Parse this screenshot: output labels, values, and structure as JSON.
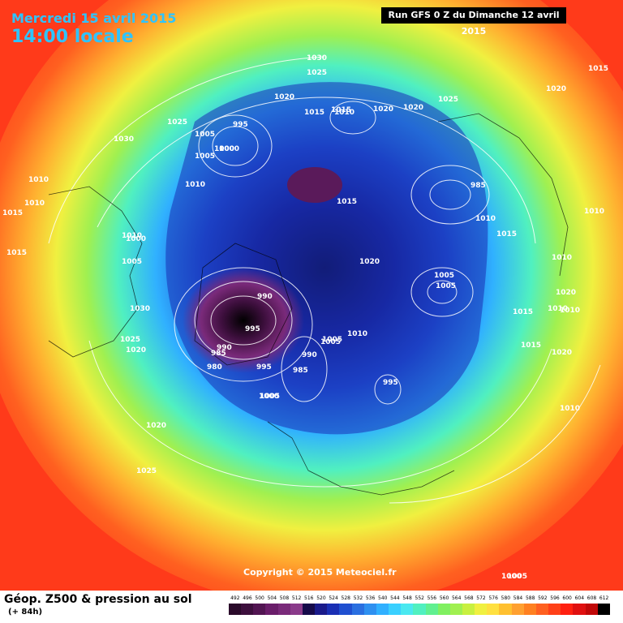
{
  "header": {
    "date_title": "Mercredi 15 avril 2015",
    "local_time": "14:00 locale",
    "run_label": "Run GFS 0 Z du Dimanche 12 avril 2015"
  },
  "footer": {
    "copyright": "Copyright © 2015 Meteociel.fr",
    "param_title": "Géop. Z500 & pression au sol",
    "forecast_hour": "(+ 84h)"
  },
  "scale": {
    "labels": [
      "492",
      "496",
      "500",
      "504",
      "508",
      "512",
      "516",
      "520",
      "524",
      "528",
      "532",
      "536",
      "540",
      "544",
      "548",
      "552",
      "556",
      "560",
      "564",
      "568",
      "572",
      "576",
      "580",
      "584",
      "588",
      "592",
      "596",
      "600",
      "604",
      "608",
      "612"
    ],
    "colors": [
      "#2a0a2a",
      "#3d0f3d",
      "#521552",
      "#6a1d6a",
      "#7a2a7a",
      "#8a3a8a",
      "#160a4a",
      "#1a1a8a",
      "#1a2fb4",
      "#1f4fd0",
      "#2a6fe0",
      "#2e90f0",
      "#30b0ff",
      "#3ad0ff",
      "#4ae8f0",
      "#50f0c0",
      "#60f090",
      "#80f060",
      "#a0f050",
      "#c8f040",
      "#f0f040",
      "#ffe040",
      "#ffc030",
      "#ffa030",
      "#ff8020",
      "#ff6020",
      "#ff4018",
      "#ff2010",
      "#e01010",
      "#c00808",
      "#000000"
    ]
  },
  "isobars": {
    "labels": [
      "1030",
      "1025",
      "1020",
      "1015",
      "1010",
      "1005",
      "1000",
      "995",
      "990",
      "985",
      "980",
      "1015",
      "1015",
      "1020",
      "1020",
      "1025",
      "1030",
      "1005",
      "1000",
      "1010",
      "1010",
      "1010",
      "1015",
      "1015",
      "1005",
      "1010",
      "1000",
      "995",
      "1005",
      "1010",
      "1020",
      "1020",
      "1025",
      "1025",
      "1020",
      "1015",
      "1015",
      "1010",
      "1010",
      "1010",
      "1020",
      "1010",
      "1010",
      "1005",
      "1005",
      "1015",
      "1015",
      "1020",
      "1030",
      "1025",
      "1020",
      "1005",
      "1000",
      "1020",
      "1025",
      "995",
      "985",
      "990",
      "985",
      "990",
      "995",
      "1005",
      "1005",
      "1000",
      "1010"
    ],
    "positions_note": ""
  }
}
